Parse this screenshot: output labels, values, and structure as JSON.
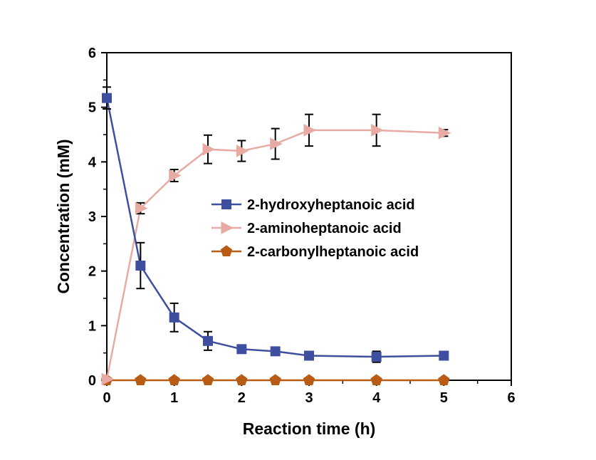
{
  "chart_data": {
    "type": "line",
    "title": "",
    "xlabel": "Reaction time (h)",
    "ylabel": "Concentration (mM)",
    "xlim": [
      0,
      6
    ],
    "ylim": [
      0,
      6
    ],
    "x_ticks": [
      "0",
      "1",
      "2",
      "3",
      "4",
      "5",
      "6"
    ],
    "y_ticks": [
      "0",
      "1",
      "2",
      "3",
      "4",
      "5",
      "6"
    ],
    "grid": false,
    "legend_position": "center-right",
    "series": [
      {
        "name": "2-hydroxyheptanoic acid",
        "marker": "square",
        "color": "#3F4FA0",
        "x": [
          0,
          0.5,
          1,
          1.5,
          2,
          2.5,
          3,
          4,
          5
        ],
        "y": [
          5.17,
          2.1,
          1.15,
          0.72,
          0.57,
          0.53,
          0.45,
          0.43,
          0.45
        ],
        "error": [
          0.2,
          0.42,
          0.26,
          0.17,
          0.07,
          0.07,
          0.07,
          0.1,
          0.07
        ]
      },
      {
        "name": "2-aminoheptanoic acid",
        "marker": "triangle-right",
        "color": "#E8ABA3",
        "x": [
          0,
          0.5,
          1,
          1.5,
          2,
          2.5,
          3,
          4,
          5
        ],
        "y": [
          0.02,
          3.15,
          3.75,
          4.23,
          4.2,
          4.33,
          4.58,
          4.58,
          4.53
        ],
        "error": [
          0,
          0.1,
          0.11,
          0.26,
          0.19,
          0.28,
          0.29,
          0.29,
          0.06
        ]
      },
      {
        "name": "2-carbonylheptanoic acid",
        "marker": "pentagon",
        "color": "#B85C15",
        "x": [
          0,
          0.5,
          1,
          1.5,
          2,
          2.5,
          3,
          4,
          5
        ],
        "y": [
          0,
          0,
          0,
          0,
          0,
          0,
          0,
          0,
          0
        ],
        "error": [
          0,
          0,
          0,
          0,
          0,
          0,
          0,
          0,
          0
        ]
      }
    ]
  }
}
